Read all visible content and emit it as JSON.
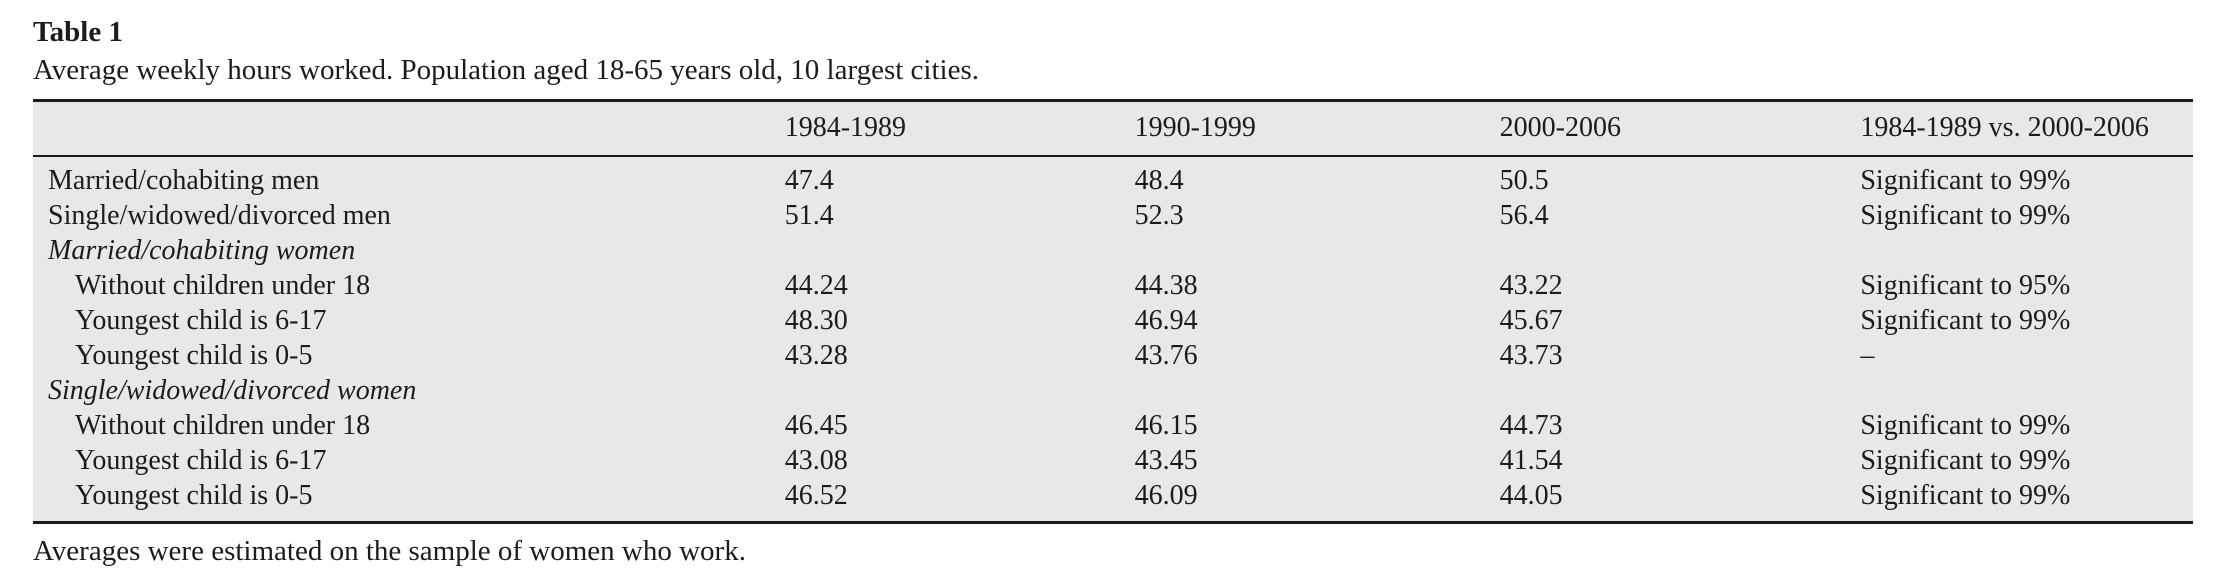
{
  "table": {
    "label": "Table 1",
    "caption": "Average weekly hours worked. Population aged 18-65 years old, 10 largest cities.",
    "columns": [
      "",
      "1984-1989",
      "1990-1999",
      "2000-2006",
      "1984-1989 vs. 2000-2006"
    ],
    "rows": [
      {
        "label": "Married/cohabiting men",
        "style": "normal",
        "values": [
          "47.4",
          "48.4",
          "50.5",
          "Significant to 99%"
        ]
      },
      {
        "label": "Single/widowed/divorced men",
        "style": "normal",
        "values": [
          "51.4",
          "52.3",
          "56.4",
          "Significant to 99%"
        ]
      },
      {
        "label": "Married/cohabiting women",
        "style": "section",
        "values": [
          "",
          "",
          "",
          ""
        ]
      },
      {
        "label": "Without children under 18",
        "style": "indent",
        "values": [
          "44.24",
          "44.38",
          "43.22",
          "Significant to 95%"
        ]
      },
      {
        "label": "Youngest child is 6-17",
        "style": "indent",
        "values": [
          "48.30",
          "46.94",
          "45.67",
          "Significant to 99%"
        ]
      },
      {
        "label": "Youngest child is 0-5",
        "style": "indent",
        "values": [
          "43.28",
          "43.76",
          "43.73",
          "–"
        ]
      },
      {
        "label": "Single/widowed/divorced women",
        "style": "section",
        "values": [
          "",
          "",
          "",
          ""
        ]
      },
      {
        "label": "Without children under 18",
        "style": "indent",
        "values": [
          "46.45",
          "46.15",
          "44.73",
          "Significant to 99%"
        ]
      },
      {
        "label": "Youngest child is 6-17",
        "style": "indent",
        "values": [
          "43.08",
          "43.45",
          "41.54",
          "Significant to 99%"
        ]
      },
      {
        "label": "Youngest child is 0-5",
        "style": "indent",
        "values": [
          "46.52",
          "46.09",
          "44.05",
          "Significant to 99%"
        ]
      }
    ],
    "footnote": "Averages were estimated on the sample of women who work."
  },
  "colors": {
    "table_background": "#e8e8e8",
    "rule": "#1c1c1c",
    "text": "#1c1c1c",
    "page_background": "#ffffff"
  }
}
